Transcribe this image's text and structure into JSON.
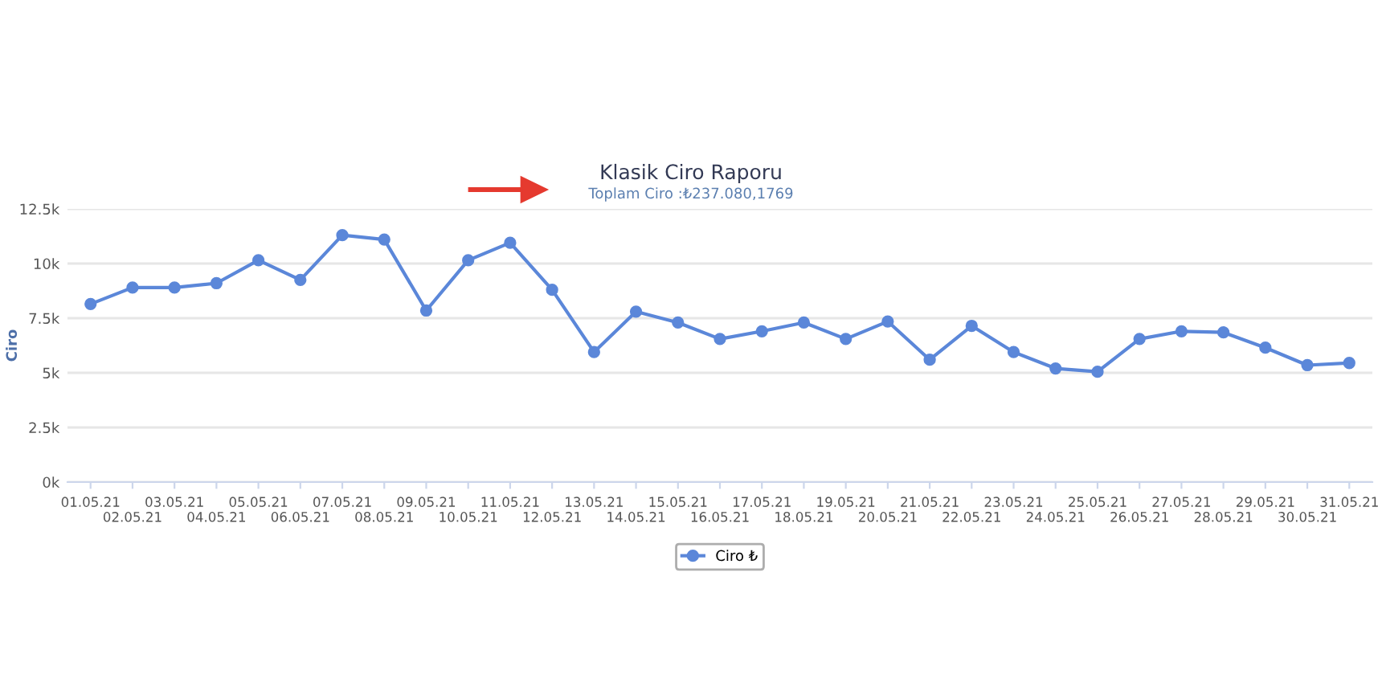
{
  "chart_data": {
    "type": "line",
    "title": "Klasik Ciro Raporu",
    "subtitle": "Toplam Ciro :₺237.080,1769",
    "ylabel": "Ciro",
    "categories": [
      "01.05.21",
      "02.05.21",
      "03.05.21",
      "04.05.21",
      "05.05.21",
      "06.05.21",
      "07.05.21",
      "08.05.21",
      "09.05.21",
      "10.05.21",
      "11.05.21",
      "12.05.21",
      "13.05.21",
      "14.05.21",
      "15.05.21",
      "16.05.21",
      "17.05.21",
      "18.05.21",
      "19.05.21",
      "20.05.21",
      "21.05.21",
      "22.05.21",
      "23.05.21",
      "24.05.21",
      "25.05.21",
      "26.05.21",
      "27.05.21",
      "28.05.21",
      "29.05.21",
      "30.05.21",
      "31.05.21"
    ],
    "series": [
      {
        "name": "Ciro ₺",
        "color": "#5b87d9",
        "values": [
          8150,
          8900,
          8900,
          9100,
          10150,
          9250,
          11300,
          11100,
          7850,
          10150,
          10950,
          8800,
          5950,
          7800,
          7300,
          6550,
          6900,
          7300,
          6550,
          7350,
          5600,
          7150,
          5950,
          5200,
          5050,
          6550,
          6900,
          6850,
          6150,
          5350,
          5450
        ]
      }
    ],
    "ylim": [
      0,
      12500
    ],
    "yticks": [
      {
        "value": 0,
        "label": "0k"
      },
      {
        "value": 2500,
        "label": "2.5k"
      },
      {
        "value": 5000,
        "label": "5k"
      },
      {
        "value": 7500,
        "label": "7.5k"
      },
      {
        "value": 10000,
        "label": "10k"
      },
      {
        "value": 12500,
        "label": "12.5k"
      }
    ],
    "grid": "y",
    "legend": "bottom",
    "marker": "circle",
    "line_style": "solid"
  }
}
